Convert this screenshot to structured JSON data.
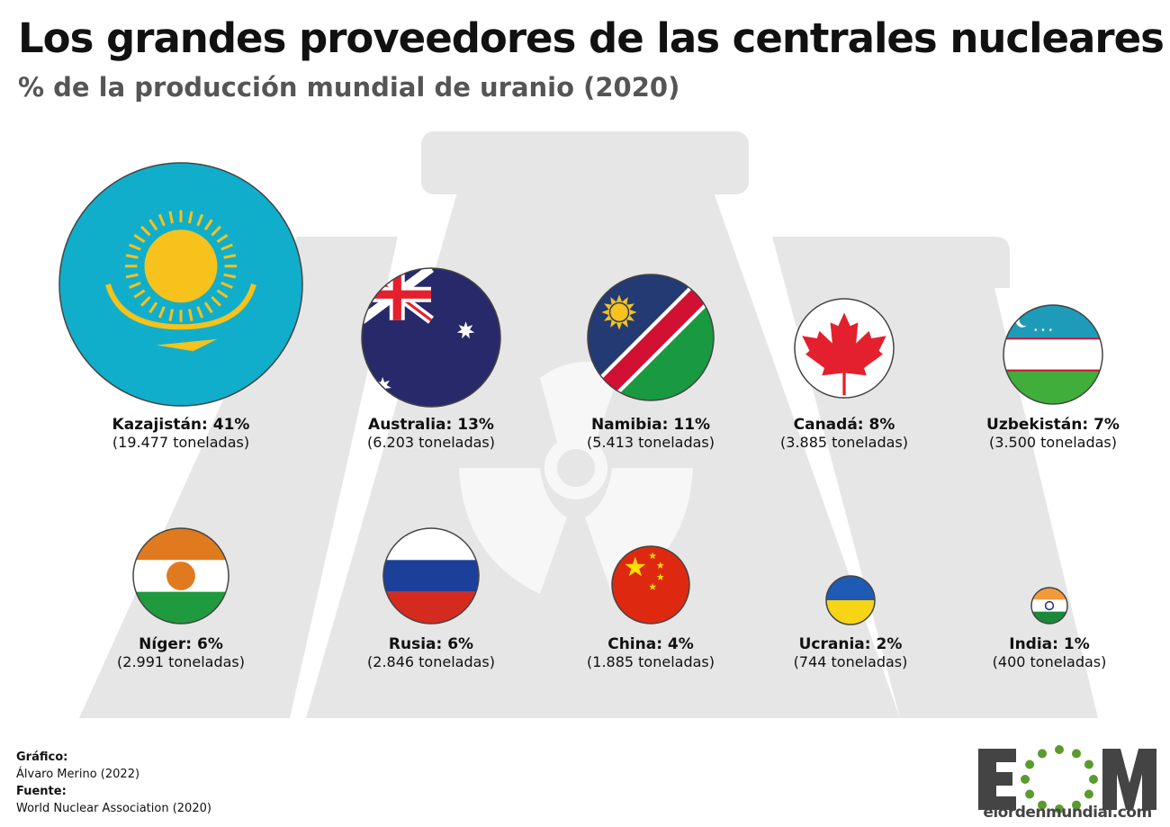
{
  "header": {
    "title": "Los grandes proveedores de las centrales nucleares",
    "subtitle": "% de la producción mundial de uranio (2020)"
  },
  "chart_data": {
    "type": "bubble",
    "title": "Los grandes proveedores de las centrales nucleares",
    "subtitle": "% de la producción mundial de uranio (2020)",
    "unit": "toneladas",
    "items": [
      {
        "country": "Kazajistán",
        "label": "Kazajistán: 41%",
        "percent": 41,
        "tonnes": 19477,
        "tonnes_label": "(19.477 toneladas)",
        "flag": "kazakhstan-flag"
      },
      {
        "country": "Australia",
        "label": "Australia: 13%",
        "percent": 13,
        "tonnes": 6203,
        "tonnes_label": "(6.203 toneladas)",
        "flag": "australia-flag"
      },
      {
        "country": "Namibia",
        "label": "Namibia: 11%",
        "percent": 11,
        "tonnes": 5413,
        "tonnes_label": "(5.413 toneladas)",
        "flag": "namibia-flag"
      },
      {
        "country": "Canadá",
        "label": "Canadá: 8%",
        "percent": 8,
        "tonnes": 3885,
        "tonnes_label": "(3.885 toneladas)",
        "flag": "canada-flag"
      },
      {
        "country": "Uzbekistán",
        "label": "Uzbekistán: 7%",
        "percent": 7,
        "tonnes": 3500,
        "tonnes_label": "(3.500 toneladas)",
        "flag": "uzbekistan-flag"
      },
      {
        "country": "Níger",
        "label": "Níger: 6%",
        "percent": 6,
        "tonnes": 2991,
        "tonnes_label": "(2.991 toneladas)",
        "flag": "niger-flag"
      },
      {
        "country": "Rusia",
        "label": "Rusia: 6%",
        "percent": 6,
        "tonnes": 2846,
        "tonnes_label": "(2.846 toneladas)",
        "flag": "russia-flag"
      },
      {
        "country": "China",
        "label": "China: 4%",
        "percent": 4,
        "tonnes": 1885,
        "tonnes_label": "(1.885 toneladas)",
        "flag": "china-flag"
      },
      {
        "country": "Ucrania",
        "label": "Ucrania: 2%",
        "percent": 2,
        "tonnes": 744,
        "tonnes_label": "(744 toneladas)",
        "flag": "ukraine-flag"
      },
      {
        "country": "India",
        "label": "India: 1%",
        "percent": 1,
        "tonnes": 400,
        "tonnes_label": "(400 toneladas)",
        "flag": "india-flag"
      }
    ]
  },
  "footer": {
    "graphic_label": "Gráfico:",
    "graphic_author": "Álvaro Merino (2022)",
    "source_label": "Fuente:",
    "source": "World Nuclear Association (2020)"
  },
  "logo": {
    "text": "EOM",
    "url": "elordenmundial.com"
  },
  "colors": {
    "background_shape": "#e6e6e6",
    "logo_dark": "#444444",
    "logo_green": "#5a9a2e"
  }
}
